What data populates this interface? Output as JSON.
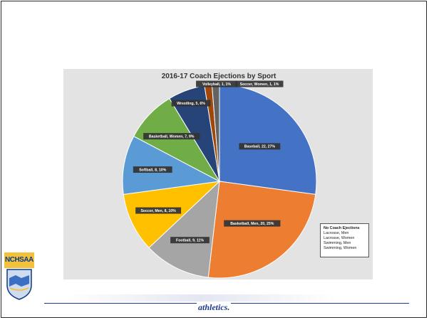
{
  "chart_data": {
    "type": "pie",
    "title": "2016-17 Coach Ejections by Sport",
    "slices": [
      {
        "label": "Baseball, 22, 27%",
        "value": 22,
        "percent": 27,
        "color": "#4472c4"
      },
      {
        "label": "Basketball, Men, 20, 25%",
        "value": 20,
        "percent": 25,
        "color": "#ed7d31"
      },
      {
        "label": "Football, 9, 11%",
        "value": 9,
        "percent": 11,
        "color": "#a5a5a5"
      },
      {
        "label": "Soccer, Men, 8, 10%",
        "value": 8,
        "percent": 10,
        "color": "#ffc000"
      },
      {
        "label": "Softball, 8, 10%",
        "value": 8,
        "percent": 10,
        "color": "#5b9bd5"
      },
      {
        "label": "Basketball, Women, 7, 9%",
        "value": 7,
        "percent": 9,
        "color": "#70ad47"
      },
      {
        "label": "Wrestling, 5, 6%",
        "value": 5,
        "percent": 6,
        "color": "#264478"
      },
      {
        "label": "Volleyball, 1, 1%",
        "value": 1,
        "percent": 1,
        "color": "#9e480e"
      },
      {
        "label": "Soccer, Women, 1, 1%",
        "value": 1,
        "percent": 1,
        "color": "#636363"
      }
    ],
    "legend": "none",
    "annotation": {
      "title": "No Coach Ejections",
      "items": [
        "Lacrosse, Men",
        "Lacrosse, Women",
        "Swimming, Men",
        "Swimming, Women"
      ]
    }
  },
  "logo": {
    "text": "NCHSAA"
  },
  "footer": {
    "text": "athletics."
  }
}
